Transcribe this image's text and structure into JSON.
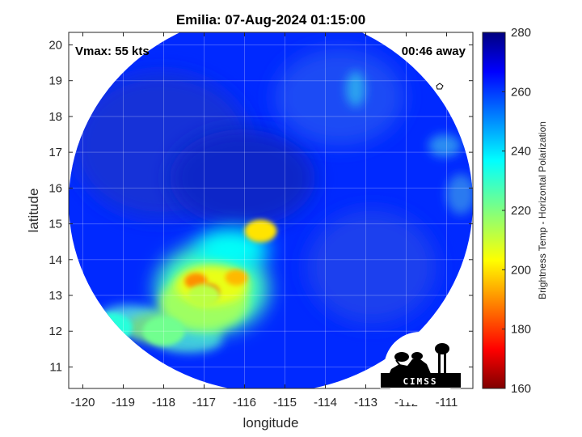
{
  "chart_data": {
    "type": "heatmap",
    "title": "Emilia: 07-Aug-2024 01:15:00",
    "xlabel": "longitude",
    "ylabel": "latitude",
    "xlim": [
      -120.35,
      -110.35
    ],
    "ylim": [
      10.4,
      20.35
    ],
    "xticks": [
      -120,
      -119,
      -118,
      -117,
      -116,
      -115,
      -114,
      -113,
      -112,
      -111
    ],
    "yticks": [
      11,
      12,
      13,
      14,
      15,
      16,
      17,
      18,
      19,
      20
    ],
    "annotations": {
      "left": "Vmax: 55 kts",
      "right": "00:46 away"
    },
    "colorbar": {
      "label": "Brightness Temp - Horizontal Polarization",
      "range": [
        160,
        280
      ],
      "ticks": [
        160,
        180,
        200,
        220,
        240,
        260,
        280
      ],
      "colormap": "jet"
    },
    "grid": true,
    "storm_features": [
      {
        "lon": -116.9,
        "lat": 13.1,
        "temp": 185
      },
      {
        "lon": -117.2,
        "lat": 13.4,
        "temp": 190
      },
      {
        "lon": -116.2,
        "lat": 13.5,
        "temp": 195
      },
      {
        "lon": -115.6,
        "lat": 14.8,
        "temp": 200
      },
      {
        "lon": -117.0,
        "lat": 13.0,
        "temp": 212
      },
      {
        "lon": -118.0,
        "lat": 12.0,
        "temp": 222
      },
      {
        "lon": -119.3,
        "lat": 12.1,
        "temp": 232
      }
    ],
    "background_temp": 262
  },
  "logo": {
    "text": "CIMSS"
  }
}
